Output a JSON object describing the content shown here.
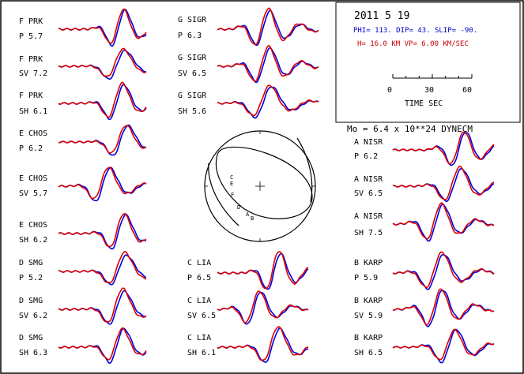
{
  "header": {
    "date": "2011  5 19",
    "mechanism": "PHI= 113. DIP= 43. SLIP= -90.",
    "depth_velocity": "H= 16.0 KM  VP= 6.00 KM/SEC",
    "scale_ticks": [
      "0",
      "30",
      "60"
    ],
    "scale_title": "TIME  SEC",
    "moment": "Mo =  6.4 x 10**24 DYNECM"
  },
  "colors": {
    "observed": "#0000dd",
    "synthetic": "#dd0000",
    "frame": "#000000"
  },
  "stations": [
    {
      "name": "F PRK",
      "phase": "P  5.7"
    },
    {
      "name": "F PRK",
      "phase": "SV 7.2"
    },
    {
      "name": "F PRK",
      "phase": "SH 6.1"
    },
    {
      "name": "E CHOS",
      "phase": "P  6.2"
    },
    {
      "name": "E CHOS",
      "phase": "SV 5.7"
    },
    {
      "name": "E CHOS",
      "phase": "SH 6.2"
    },
    {
      "name": "D SMG",
      "phase": "P  5.2"
    },
    {
      "name": "D SMG",
      "phase": "SV 6.2"
    },
    {
      "name": "D SMG",
      "phase": "SH 6.3"
    },
    {
      "name": "G SIGR",
      "phase": "P  6.3"
    },
    {
      "name": "G SIGR",
      "phase": "SV 6.5"
    },
    {
      "name": "G SIGR",
      "phase": "SH 5.6"
    },
    {
      "name": "C LIA",
      "phase": "P  6.5"
    },
    {
      "name": "C LIA",
      "phase": "SV 6.5"
    },
    {
      "name": "C LIA",
      "phase": "SH 6.1"
    },
    {
      "name": "A NISR",
      "phase": "P  6.2"
    },
    {
      "name": "A NISR",
      "phase": "SV 6.5"
    },
    {
      "name": "A NISR",
      "phase": "SH 7.5"
    },
    {
      "name": "B KARP",
      "phase": "P  5.9"
    },
    {
      "name": "B KARP",
      "phase": "SV 5.9"
    },
    {
      "name": "B KARP",
      "phase": "SH 6.5"
    }
  ],
  "focal_points": [
    "C",
    "E",
    "F",
    "D",
    "A",
    "B"
  ]
}
